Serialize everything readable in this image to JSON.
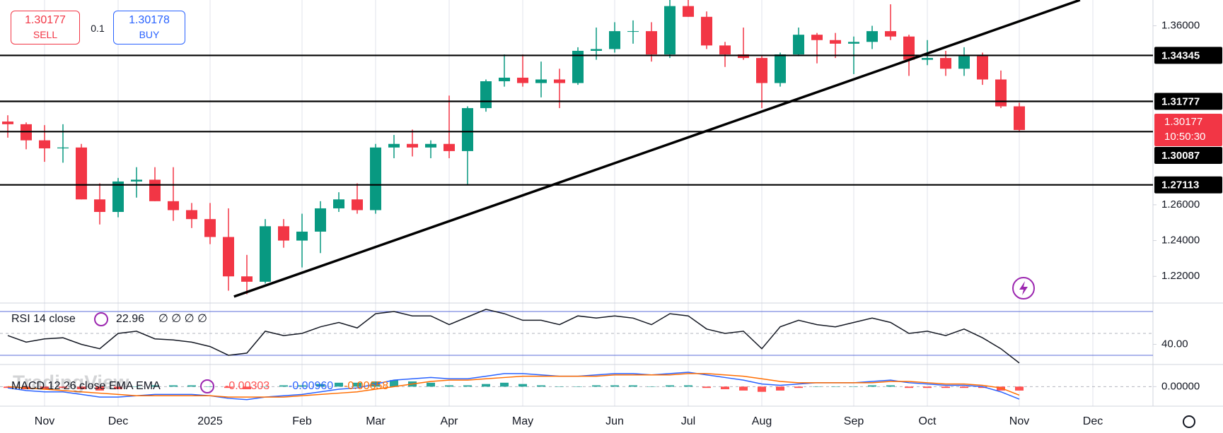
{
  "chart_data": [
    {
      "type": "candlestick",
      "categories": [
        null,
        null,
        "Nov",
        null,
        null,
        null,
        "Dec",
        null,
        null,
        null,
        null,
        "2025",
        null,
        null,
        null,
        null,
        "Feb",
        null,
        null,
        null,
        "Mar",
        null,
        null,
        null,
        "Apr",
        null,
        null,
        null,
        "May",
        null,
        null,
        null,
        null,
        "Jun",
        null,
        null,
        null,
        "Jul",
        null,
        null,
        null,
        "Aug",
        null,
        null,
        null,
        null,
        "Sep",
        null,
        null,
        null,
        "Oct",
        null,
        null,
        null,
        null,
        "Nov",
        null,
        null,
        null,
        "Dec"
      ],
      "open": [
        1.3065,
        1.305,
        1.296,
        1.2915,
        1.292,
        1.263,
        1.256,
        1.273,
        1.274,
        1.262,
        1.257,
        1.252,
        1.242,
        1.22,
        1.217,
        1.248,
        1.24,
        1.245,
        1.258,
        1.263,
        1.257,
        1.292,
        1.294,
        1.292,
        1.294,
        1.29,
        1.314,
        1.329,
        1.331,
        1.328,
        1.33,
        1.328,
        1.346,
        1.347,
        1.357,
        1.357,
        1.344,
        1.371,
        1.365,
        1.349,
        1.344,
        1.342,
        1.328,
        1.344,
        1.355,
        1.352,
        1.35,
        1.351,
        1.357,
        1.354,
        1.341,
        1.342,
        1.336,
        1.343,
        1.33,
        1.315,
        null,
        null,
        null,
        null
      ],
      "high": [
        1.31,
        1.306,
        1.3045,
        1.305,
        1.294,
        1.272,
        1.275,
        1.281,
        1.281,
        1.281,
        1.261,
        1.261,
        1.258,
        1.232,
        1.252,
        1.252,
        1.255,
        1.262,
        1.267,
        1.272,
        1.294,
        1.299,
        1.302,
        1.296,
        1.321,
        1.315,
        1.33,
        1.344,
        1.344,
        1.34,
        1.336,
        1.348,
        1.359,
        1.362,
        1.363,
        1.362,
        1.377,
        1.379,
        1.368,
        1.351,
        1.359,
        1.343,
        1.345,
        1.359,
        1.356,
        1.356,
        1.354,
        1.36,
        1.372,
        1.355,
        1.352,
        1.346,
        1.348,
        1.345,
        1.335,
        1.317,
        null,
        null,
        null,
        null
      ],
      "low": [
        1.2975,
        1.291,
        1.284,
        1.2835,
        1.263,
        1.249,
        1.253,
        1.264,
        1.262,
        1.251,
        1.247,
        1.238,
        1.212,
        1.21,
        1.216,
        1.236,
        1.225,
        1.233,
        1.256,
        1.255,
        1.255,
        1.286,
        1.287,
        1.286,
        1.286,
        1.271,
        1.312,
        1.326,
        1.326,
        1.32,
        1.314,
        1.327,
        1.341,
        1.345,
        1.35,
        1.34,
        1.342,
        1.365,
        1.347,
        1.337,
        1.341,
        1.314,
        1.326,
        1.343,
        1.339,
        1.342,
        1.333,
        1.347,
        1.352,
        1.332,
        1.338,
        1.332,
        1.332,
        1.327,
        1.314,
        1.301,
        null,
        null,
        null,
        null
      ],
      "close": [
        1.305,
        1.296,
        1.2915,
        1.292,
        1.263,
        1.256,
        1.273,
        1.274,
        1.262,
        1.257,
        1.252,
        1.242,
        1.22,
        1.217,
        1.248,
        1.24,
        1.245,
        1.258,
        1.263,
        1.257,
        1.292,
        1.294,
        1.292,
        1.294,
        1.29,
        1.314,
        1.329,
        1.331,
        1.328,
        1.33,
        1.328,
        1.346,
        1.347,
        1.357,
        1.357,
        1.344,
        1.371,
        1.365,
        1.349,
        1.344,
        1.342,
        1.328,
        1.344,
        1.355,
        1.352,
        1.35,
        1.351,
        1.357,
        1.354,
        1.341,
        1.342,
        1.336,
        1.343,
        1.33,
        1.315,
        1.30177,
        null,
        null,
        null,
        null
      ],
      "up_color": "#089981",
      "down_color": "#f23645",
      "ylim": [
        1.2055,
        1.3744
      ],
      "yticks": [
        {
          "value": 1.36,
          "label": "1.36000"
        },
        {
          "value": 1.26,
          "label": "1.26000"
        },
        {
          "value": 1.24,
          "label": "1.24000"
        },
        {
          "value": 1.22,
          "label": "1.22000"
        }
      ],
      "grid": true,
      "levels": [
        1.34345,
        1.31777,
        1.30087,
        1.27113
      ],
      "trendline": {
        "x": [
          12.3,
          58.3
        ],
        "y": [
          1.2087,
          1.3744
        ]
      },
      "countdown": "10:50:30"
    },
    {
      "type": "line",
      "title": "RSI 14 close",
      "placeholders": "∅ ∅ ∅ ∅",
      "color": "#131722",
      "values": [
        48,
        42,
        45,
        46,
        40,
        36,
        50,
        52,
        45,
        44,
        42,
        38,
        30,
        32,
        52,
        48,
        50,
        56,
        60,
        55,
        68,
        70,
        66,
        66,
        58,
        65,
        72,
        68,
        62,
        62,
        58,
        66,
        64,
        66,
        64,
        58,
        68,
        66,
        54,
        50,
        52,
        36,
        56,
        62,
        58,
        56,
        60,
        64,
        60,
        50,
        52,
        48,
        54,
        46,
        36,
        22.96,
        null,
        null,
        null,
        null
      ],
      "ylim": [
        21.6,
        77.1
      ],
      "yticks": [
        {
          "value": 40,
          "label": "40.00"
        }
      ],
      "bands": [
        70,
        30
      ],
      "band_color": "#5b6dd8",
      "midline": 50
    },
    {
      "type": "macd",
      "title": "MACD 12 26 close EMA EMA",
      "ylim": [
        -0.015,
        0.017
      ],
      "yticks": [
        {
          "value": 0,
          "label": "0.00000"
        }
      ],
      "histogram": {
        "color": "#26a69a",
        "negative_color": "#ff5252",
        "values": [
          -0.001,
          -0.002,
          -0.002,
          -0.001,
          -0.002,
          -0.003,
          -0.002,
          0.0,
          0.001,
          0.001,
          0.001,
          0.0,
          -0.001,
          -0.002,
          0.0,
          0.001,
          0.001,
          0.002,
          0.003,
          0.003,
          0.004,
          0.005,
          0.004,
          0.003,
          0.001,
          0.001,
          0.002,
          0.003,
          0.002,
          0.001,
          0.0,
          0.0,
          0.001,
          0.001,
          0.001,
          0.0,
          0.001,
          0.001,
          -0.001,
          -0.002,
          -0.003,
          -0.004,
          -0.003,
          -0.001,
          0.0,
          0.0,
          0.0,
          0.001,
          0.001,
          -0.001,
          -0.001,
          -0.001,
          -0.001,
          -0.001,
          -0.003,
          -0.00303,
          null,
          null,
          null,
          null
        ]
      },
      "series": [
        {
          "color": "#2962ff",
          "values": [
            -0.001,
            -0.003,
            -0.004,
            -0.004,
            -0.006,
            -0.008,
            -0.008,
            -0.007,
            -0.006,
            -0.006,
            -0.006,
            -0.007,
            -0.009,
            -0.01,
            -0.008,
            -0.007,
            -0.006,
            -0.004,
            -0.002,
            -0.001,
            0.002,
            0.005,
            0.006,
            0.007,
            0.006,
            0.006,
            0.008,
            0.01,
            0.01,
            0.009,
            0.008,
            0.008,
            0.009,
            0.01,
            0.01,
            0.009,
            0.01,
            0.011,
            0.009,
            0.007,
            0.005,
            0.002,
            0.001,
            0.002,
            0.003,
            0.003,
            0.003,
            0.004,
            0.005,
            0.003,
            0.002,
            0.001,
            0.001,
            0.0,
            -0.004,
            -0.0096,
            null,
            null,
            null,
            null
          ],
          "value_labels": [
            null,
            null,
            null,
            null,
            null,
            null,
            null,
            null,
            null,
            null,
            null,
            null,
            null,
            null,
            null,
            null,
            null,
            null,
            null,
            null,
            null,
            null,
            null,
            null,
            null,
            null,
            null,
            null,
            null,
            null,
            null,
            null,
            null,
            null,
            null,
            null,
            null,
            null,
            null,
            null,
            null,
            null,
            null,
            null,
            null,
            null,
            null,
            null,
            null,
            null,
            null,
            null,
            null,
            null,
            null,
            "-0.00960",
            null,
            null,
            null,
            null
          ]
        },
        {
          "color": "#ff6d00",
          "values": [
            0.0,
            -0.001,
            -0.002,
            -0.003,
            -0.004,
            -0.005,
            -0.006,
            -0.007,
            -0.007,
            -0.007,
            -0.007,
            -0.007,
            -0.008,
            -0.008,
            -0.008,
            -0.008,
            -0.007,
            -0.006,
            -0.005,
            -0.004,
            -0.002,
            0.0,
            0.002,
            0.004,
            0.005,
            0.005,
            0.006,
            0.007,
            0.008,
            0.008,
            0.008,
            0.008,
            0.008,
            0.009,
            0.009,
            0.009,
            0.009,
            0.01,
            0.01,
            0.009,
            0.008,
            0.006,
            0.004,
            0.003,
            0.003,
            0.003,
            0.003,
            0.003,
            0.004,
            0.004,
            0.003,
            0.002,
            0.002,
            0.001,
            -0.001,
            -0.00658,
            null,
            null,
            null,
            null
          ]
        }
      ]
    }
  ],
  "trade_panel": {
    "sell_price": 1.30177,
    "sell_label": "SELL",
    "quantity": 0.1,
    "buy_price": 1.30178,
    "buy_label": "BUY"
  },
  "watermark": "TradingView"
}
